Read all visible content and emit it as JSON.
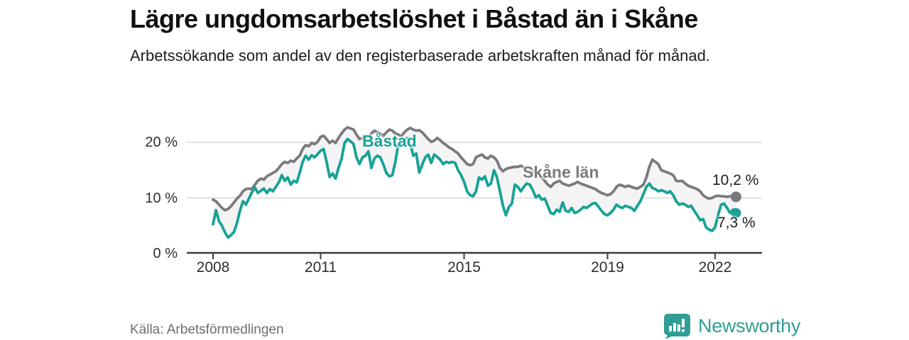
{
  "header": {
    "title": "Lägre ungdomsarbetslöshet i Båstad än i Skåne",
    "subtitle": "Arbetssökande som andel av den registerbaserade arbetskraften månad för månad."
  },
  "footer": {
    "source": "Källa: Arbetsförmedlingen",
    "brand": "Newsworthy"
  },
  "colors": {
    "bastad": "#17a296",
    "skane": "#7a7a7e",
    "fill_between": "#f4f4f4",
    "gridline": "#d7d7d7",
    "axis": "#3c3c3c",
    "brand_teal": "#2f9e94"
  },
  "chart_data": {
    "type": "line",
    "title": "Lägre ungdomsarbetslöshet i Båstad än i Skåne",
    "subtitle": "Arbetssökande som andel av den registerbaserade arbetskraften månad för månad.",
    "x_unit": "month",
    "x_start": "2008-01",
    "x_end": "2022-08",
    "ylim": [
      0,
      25
    ],
    "grid": true,
    "y_ticks": [
      {
        "label": "0 %",
        "value": 0
      },
      {
        "label": "10 %",
        "value": 10
      },
      {
        "label": "20 %",
        "value": 20
      }
    ],
    "x_ticks": [
      {
        "label": "2008",
        "year": 2008
      },
      {
        "label": "2011",
        "year": 2011
      },
      {
        "label": "2015",
        "year": 2015
      },
      {
        "label": "2019",
        "year": 2019
      },
      {
        "label": "2022",
        "year": 2022
      }
    ],
    "series": [
      {
        "name": "Skåne län",
        "color": "#7a7a7e",
        "end_label": "10,2 %",
        "end_value": 10.2,
        "values": [
          9.7,
          9.4,
          8.8,
          8.2,
          7.8,
          8.0,
          8.5,
          9.2,
          9.9,
          10.4,
          11.2,
          11.6,
          11.7,
          11.6,
          12.4,
          13.1,
          13.5,
          13.3,
          13.9,
          14.2,
          14.5,
          14.8,
          15.4,
          16.1,
          16.5,
          16.3,
          16.7,
          16.5,
          17.1,
          17.6,
          18.8,
          19.5,
          19.3,
          19.9,
          19.7,
          20.1,
          21.0,
          21.2,
          20.6,
          19.9,
          20.3,
          19.9,
          20.8,
          21.6,
          22.3,
          22.7,
          22.5,
          22.3,
          21.4,
          20.6,
          20.8,
          20.1,
          21.0,
          21.6,
          22.1,
          21.8,
          21.6,
          21.2,
          21.8,
          22.3,
          22.1,
          21.6,
          21.4,
          21.1,
          21.8,
          22.3,
          22.6,
          22.3,
          22.1,
          22.2,
          21.8,
          21.2,
          20.6,
          20.1,
          20.3,
          20.8,
          20.4,
          19.9,
          19.5,
          19.1,
          18.8,
          18.4,
          18.0,
          17.3,
          16.7,
          16.1,
          15.9,
          16.1,
          17.3,
          17.6,
          17.8,
          17.3,
          17.1,
          17.6,
          17.3,
          16.7,
          15.4,
          14.8,
          15.2,
          15.4,
          15.5,
          15.6,
          15.6,
          15.8,
          15.5,
          15.4,
          15.2,
          15.0,
          14.4,
          14.1,
          13.7,
          13.1,
          12.4,
          12.0,
          12.6,
          12.9,
          13.1,
          12.6,
          12.4,
          12.2,
          12.4,
          12.6,
          12.9,
          12.6,
          12.4,
          12.2,
          12.0,
          11.8,
          11.6,
          11.2,
          10.9,
          10.7,
          10.5,
          10.7,
          11.2,
          12.0,
          12.4,
          12.2,
          12.0,
          12.2,
          12.0,
          11.8,
          11.7,
          12.0,
          12.4,
          13.7,
          15.6,
          16.9,
          16.5,
          16.1,
          15.0,
          14.8,
          14.6,
          14.4,
          14.1,
          13.1,
          13.0,
          13.1,
          12.6,
          12.2,
          12.0,
          11.8,
          11.6,
          11.2,
          10.5,
          10.1,
          9.9,
          10.0,
          10.3,
          10.4,
          10.3,
          10.3,
          10.2,
          10.3,
          10.3,
          10.2
        ]
      },
      {
        "name": "Båstad",
        "color": "#17a296",
        "end_label": "7,3 %",
        "end_value": 7.3,
        "values": [
          5.3,
          7.8,
          5.8,
          5.0,
          3.8,
          2.9,
          3.3,
          3.9,
          5.5,
          7.7,
          9.4,
          8.8,
          9.9,
          11.0,
          11.9,
          10.9,
          11.3,
          11.7,
          10.9,
          11.6,
          11.2,
          12.0,
          12.8,
          14.1,
          13.1,
          13.7,
          12.4,
          13.1,
          12.8,
          14.5,
          16.5,
          17.6,
          16.9,
          17.7,
          17.3,
          17.9,
          18.5,
          18.8,
          16.5,
          13.8,
          14.4,
          13.5,
          15.4,
          17.0,
          19.9,
          20.6,
          20.2,
          19.7,
          17.3,
          16.1,
          17.3,
          17.6,
          18.4,
          15.4,
          17.1,
          17.6,
          17.3,
          16.0,
          14.5,
          13.9,
          14.1,
          16.5,
          19.7,
          20.1,
          20.4,
          20.8,
          19.9,
          17.6,
          18.0,
          14.6,
          16.0,
          17.3,
          17.8,
          16.3,
          17.8,
          17.4,
          16.9,
          16.1,
          16.5,
          16.3,
          16.5,
          16.3,
          15.0,
          14.1,
          12.9,
          11.2,
          10.5,
          10.3,
          11.2,
          13.7,
          13.3,
          13.9,
          12.2,
          12.6,
          15.0,
          13.7,
          11.2,
          8.6,
          6.9,
          8.4,
          9.0,
          12.4,
          12.0,
          11.2,
          12.0,
          12.6,
          12.4,
          11.4,
          10.1,
          10.5,
          9.7,
          9.9,
          8.6,
          7.3,
          7.1,
          7.9,
          7.5,
          9.2,
          7.7,
          7.5,
          8.2,
          7.3,
          7.5,
          7.9,
          8.4,
          8.2,
          8.6,
          9.0,
          9.1,
          8.4,
          7.7,
          7.1,
          6.9,
          7.3,
          7.9,
          8.8,
          8.4,
          8.2,
          8.6,
          8.4,
          8.2,
          7.7,
          8.6,
          9.4,
          10.7,
          12.0,
          12.6,
          11.8,
          11.6,
          11.2,
          11.4,
          11.2,
          10.9,
          11.2,
          10.5,
          9.4,
          8.8,
          9.0,
          8.8,
          8.4,
          8.6,
          7.7,
          6.9,
          6.0,
          6.2,
          4.7,
          4.3,
          4.1,
          4.7,
          6.9,
          8.8,
          9.0,
          8.2,
          7.3,
          7.9,
          7.3
        ]
      }
    ]
  }
}
